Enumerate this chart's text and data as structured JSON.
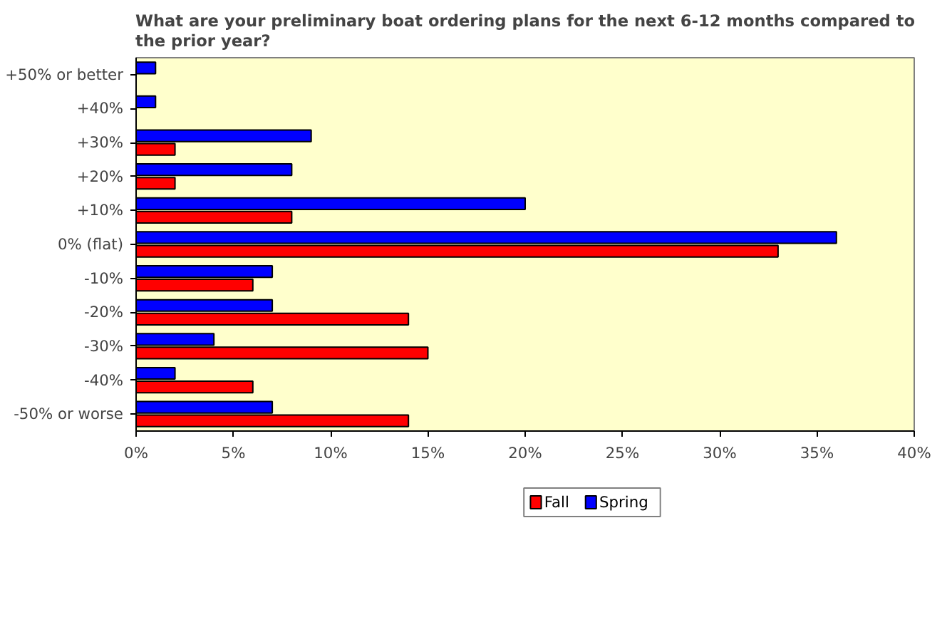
{
  "chart_data": {
    "type": "bar",
    "orientation": "horizontal",
    "title": "What are your preliminary boat ordering plans for the next 6-12 months compared to the prior year?",
    "categories": [
      "+50% or better",
      "+40%",
      "+30%",
      "+20%",
      "+10%",
      "0% (flat)",
      "-10%",
      "-20%",
      "-30%",
      "-40%",
      "-50% or worse"
    ],
    "series": [
      {
        "name": "Fall",
        "color": "#ff0000",
        "values": [
          0,
          0,
          2,
          2,
          8,
          33,
          6,
          14,
          15,
          6,
          14
        ]
      },
      {
        "name": "Spring",
        "color": "#0000ff",
        "values": [
          1,
          1,
          9,
          8,
          20,
          36,
          7,
          7,
          4,
          2,
          7
        ]
      }
    ],
    "xlim": [
      0,
      40
    ],
    "xticks": [
      {
        "value": 0,
        "label": "0%"
      },
      {
        "value": 5,
        "label": "5%"
      },
      {
        "value": 10,
        "label": "10%"
      },
      {
        "value": 15,
        "label": "15%"
      },
      {
        "value": 20,
        "label": "20%"
      },
      {
        "value": 25,
        "label": "25%"
      },
      {
        "value": 30,
        "label": "30%"
      },
      {
        "value": 35,
        "label": "35%"
      },
      {
        "value": 40,
        "label": "40%"
      }
    ],
    "grid": false,
    "legend": "bottom"
  }
}
